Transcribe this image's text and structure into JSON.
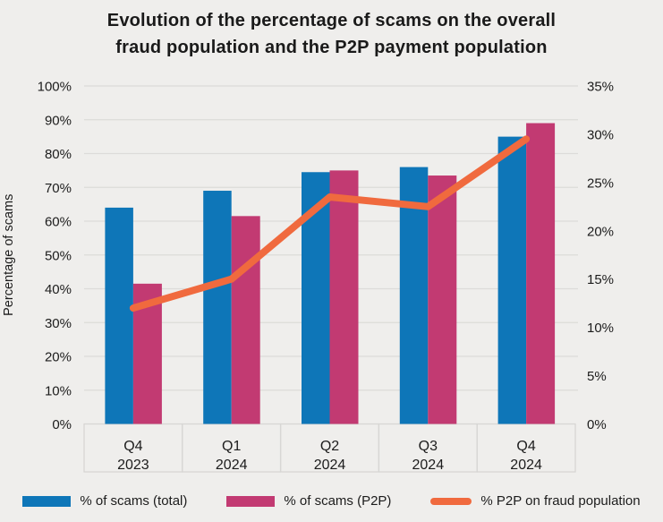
{
  "chart_data": {
    "type": "bar+line",
    "title": "Evolution of the percentage of scams on the overall fraud population and the P2P payment population",
    "title_lines": [
      "Evolution of the percentage of scams on the overall",
      "fraud population and the P2P payment population"
    ],
    "categories": [
      {
        "line1": "Q4",
        "line2": "2023"
      },
      {
        "line1": "Q1",
        "line2": "2024"
      },
      {
        "line1": "Q2",
        "line2": "2024"
      },
      {
        "line1": "Q3",
        "line2": "2024"
      },
      {
        "line1": "Q4",
        "line2": "2024"
      }
    ],
    "bar_series": [
      {
        "name": "% of scams (total)",
        "color": "#0e76b8",
        "axis": "left",
        "values": [
          64,
          69,
          74.5,
          76,
          85
        ]
      },
      {
        "name": "% of scams (P2P)",
        "color": "#c23a72",
        "axis": "left",
        "values": [
          41.5,
          61.5,
          75,
          73.5,
          89
        ]
      }
    ],
    "line_series": [
      {
        "name": "% P2P on fraud population",
        "color": "#f06a3e",
        "axis": "right",
        "values": [
          12,
          15,
          23.5,
          22.5,
          29.5
        ]
      }
    ],
    "left_axis": {
      "label": "Percentage of scams",
      "min": 0,
      "max": 100,
      "step": 10,
      "tick_suffix": "%"
    },
    "right_axis": {
      "label": "",
      "min": 0,
      "max": 35,
      "step": 5,
      "tick_suffix": "%"
    },
    "grid": true,
    "legend_position": "bottom",
    "colors": {
      "background": "#efeeec",
      "grid": "#dcdbd9",
      "cell_border": "#d7d6d4",
      "text": "#1c1c1c"
    }
  }
}
